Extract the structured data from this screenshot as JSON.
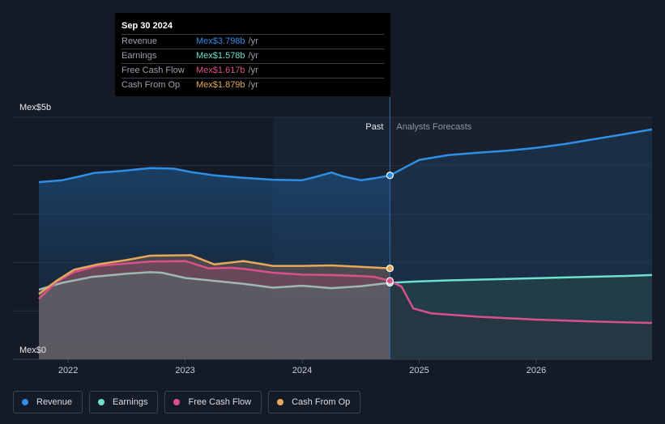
{
  "tooltip": {
    "date": "Sep 30 2024",
    "rows": [
      {
        "label": "Revenue",
        "value": "Mex$3.798b",
        "unit": "/yr",
        "color": "#2f8fe6"
      },
      {
        "label": "Earnings",
        "value": "Mex$1.578b",
        "unit": "/yr",
        "color": "#6fe0cc"
      },
      {
        "label": "Free Cash Flow",
        "value": "Mex$1.617b",
        "unit": "/yr",
        "color": "#d9508a"
      },
      {
        "label": "Cash From Op",
        "value": "Mex$1.879b",
        "unit": "/yr",
        "color": "#e8a85a"
      }
    ]
  },
  "legend": [
    {
      "label": "Revenue",
      "color": "#2f8fe6"
    },
    {
      "label": "Earnings",
      "color": "#6fe0cc"
    },
    {
      "label": "Free Cash Flow",
      "color": "#d9508a"
    },
    {
      "label": "Cash From Op",
      "color": "#e8a85a"
    }
  ],
  "chart_data": {
    "type": "area",
    "title": "",
    "y_max_label": "Mex$5b",
    "y_min_label": "Mex$0",
    "ylim": [
      0,
      5
    ],
    "xlim": [
      2021.75,
      2026.99
    ],
    "x_ticks": [
      {
        "value": 2022,
        "label": "2022"
      },
      {
        "value": 2023,
        "label": "2023"
      },
      {
        "value": 2024,
        "label": "2024"
      },
      {
        "value": 2025,
        "label": "2025"
      },
      {
        "value": 2026,
        "label": "2026"
      }
    ],
    "gridlines": [
      1,
      2,
      3,
      4,
      5
    ],
    "past_label": "Past",
    "forecast_label": "Analysts Forecasts",
    "divider_x": 2024.75,
    "highlight_start_x": 2023.75,
    "series": [
      {
        "name": "Revenue",
        "color": "#2f8fe6",
        "past": [
          [
            2021.75,
            3.66
          ],
          [
            2021.95,
            3.7
          ],
          [
            2022.1,
            3.78
          ],
          [
            2022.22,
            3.85
          ],
          [
            2022.45,
            3.89
          ],
          [
            2022.7,
            3.95
          ],
          [
            2022.9,
            3.94
          ],
          [
            2023.05,
            3.87
          ],
          [
            2023.25,
            3.8
          ],
          [
            2023.5,
            3.75
          ],
          [
            2023.75,
            3.71
          ],
          [
            2024.0,
            3.7
          ],
          [
            2024.1,
            3.76
          ],
          [
            2024.25,
            3.86
          ],
          [
            2024.35,
            3.78
          ],
          [
            2024.5,
            3.7
          ],
          [
            2024.62,
            3.74
          ],
          [
            2024.75,
            3.8
          ]
        ],
        "forecast": [
          [
            2024.75,
            3.8
          ],
          [
            2025.0,
            4.12
          ],
          [
            2025.25,
            4.22
          ],
          [
            2025.5,
            4.27
          ],
          [
            2025.75,
            4.31
          ],
          [
            2026.0,
            4.37
          ],
          [
            2026.25,
            4.45
          ],
          [
            2026.5,
            4.55
          ],
          [
            2026.75,
            4.65
          ],
          [
            2026.99,
            4.75
          ]
        ]
      },
      {
        "name": "Earnings",
        "color": "#6fe0cc",
        "past": [
          [
            2021.75,
            1.44
          ],
          [
            2021.95,
            1.58
          ],
          [
            2022.2,
            1.7
          ],
          [
            2022.5,
            1.77
          ],
          [
            2022.7,
            1.8
          ],
          [
            2022.8,
            1.79
          ],
          [
            2023.0,
            1.68
          ],
          [
            2023.25,
            1.62
          ],
          [
            2023.5,
            1.56
          ],
          [
            2023.75,
            1.48
          ],
          [
            2024.0,
            1.52
          ],
          [
            2024.25,
            1.47
          ],
          [
            2024.5,
            1.51
          ],
          [
            2024.75,
            1.58
          ]
        ],
        "forecast": [
          [
            2024.75,
            1.58
          ],
          [
            2025.0,
            1.61
          ],
          [
            2025.25,
            1.63
          ],
          [
            2025.75,
            1.66
          ],
          [
            2026.25,
            1.69
          ],
          [
            2026.75,
            1.72
          ],
          [
            2026.99,
            1.74
          ]
        ]
      },
      {
        "name": "Free Cash Flow",
        "color": "#d9508a",
        "past": [
          [
            2021.75,
            1.25
          ],
          [
            2021.9,
            1.6
          ],
          [
            2022.05,
            1.8
          ],
          [
            2022.25,
            1.93
          ],
          [
            2022.5,
            1.98
          ],
          [
            2022.7,
            2.02
          ],
          [
            2023.0,
            2.03
          ],
          [
            2023.2,
            1.88
          ],
          [
            2023.4,
            1.89
          ],
          [
            2023.5,
            1.87
          ],
          [
            2023.75,
            1.79
          ],
          [
            2024.0,
            1.75
          ],
          [
            2024.25,
            1.74
          ],
          [
            2024.5,
            1.72
          ],
          [
            2024.62,
            1.7
          ],
          [
            2024.75,
            1.62
          ]
        ],
        "forecast": [
          [
            2024.75,
            1.62
          ],
          [
            2024.85,
            1.5
          ],
          [
            2024.95,
            1.05
          ],
          [
            2025.1,
            0.95
          ],
          [
            2025.5,
            0.88
          ],
          [
            2026.0,
            0.82
          ],
          [
            2026.5,
            0.78
          ],
          [
            2026.99,
            0.75
          ]
        ]
      },
      {
        "name": "Cash From Op",
        "color": "#e8a85a",
        "past": [
          [
            2021.75,
            1.35
          ],
          [
            2021.9,
            1.62
          ],
          [
            2022.05,
            1.85
          ],
          [
            2022.25,
            1.96
          ],
          [
            2022.5,
            2.05
          ],
          [
            2022.7,
            2.14
          ],
          [
            2023.05,
            2.15
          ],
          [
            2023.25,
            1.96
          ],
          [
            2023.5,
            2.03
          ],
          [
            2023.75,
            1.93
          ],
          [
            2024.0,
            1.93
          ],
          [
            2024.25,
            1.94
          ],
          [
            2024.5,
            1.91
          ],
          [
            2024.75,
            1.88
          ]
        ],
        "forecast": []
      }
    ]
  }
}
